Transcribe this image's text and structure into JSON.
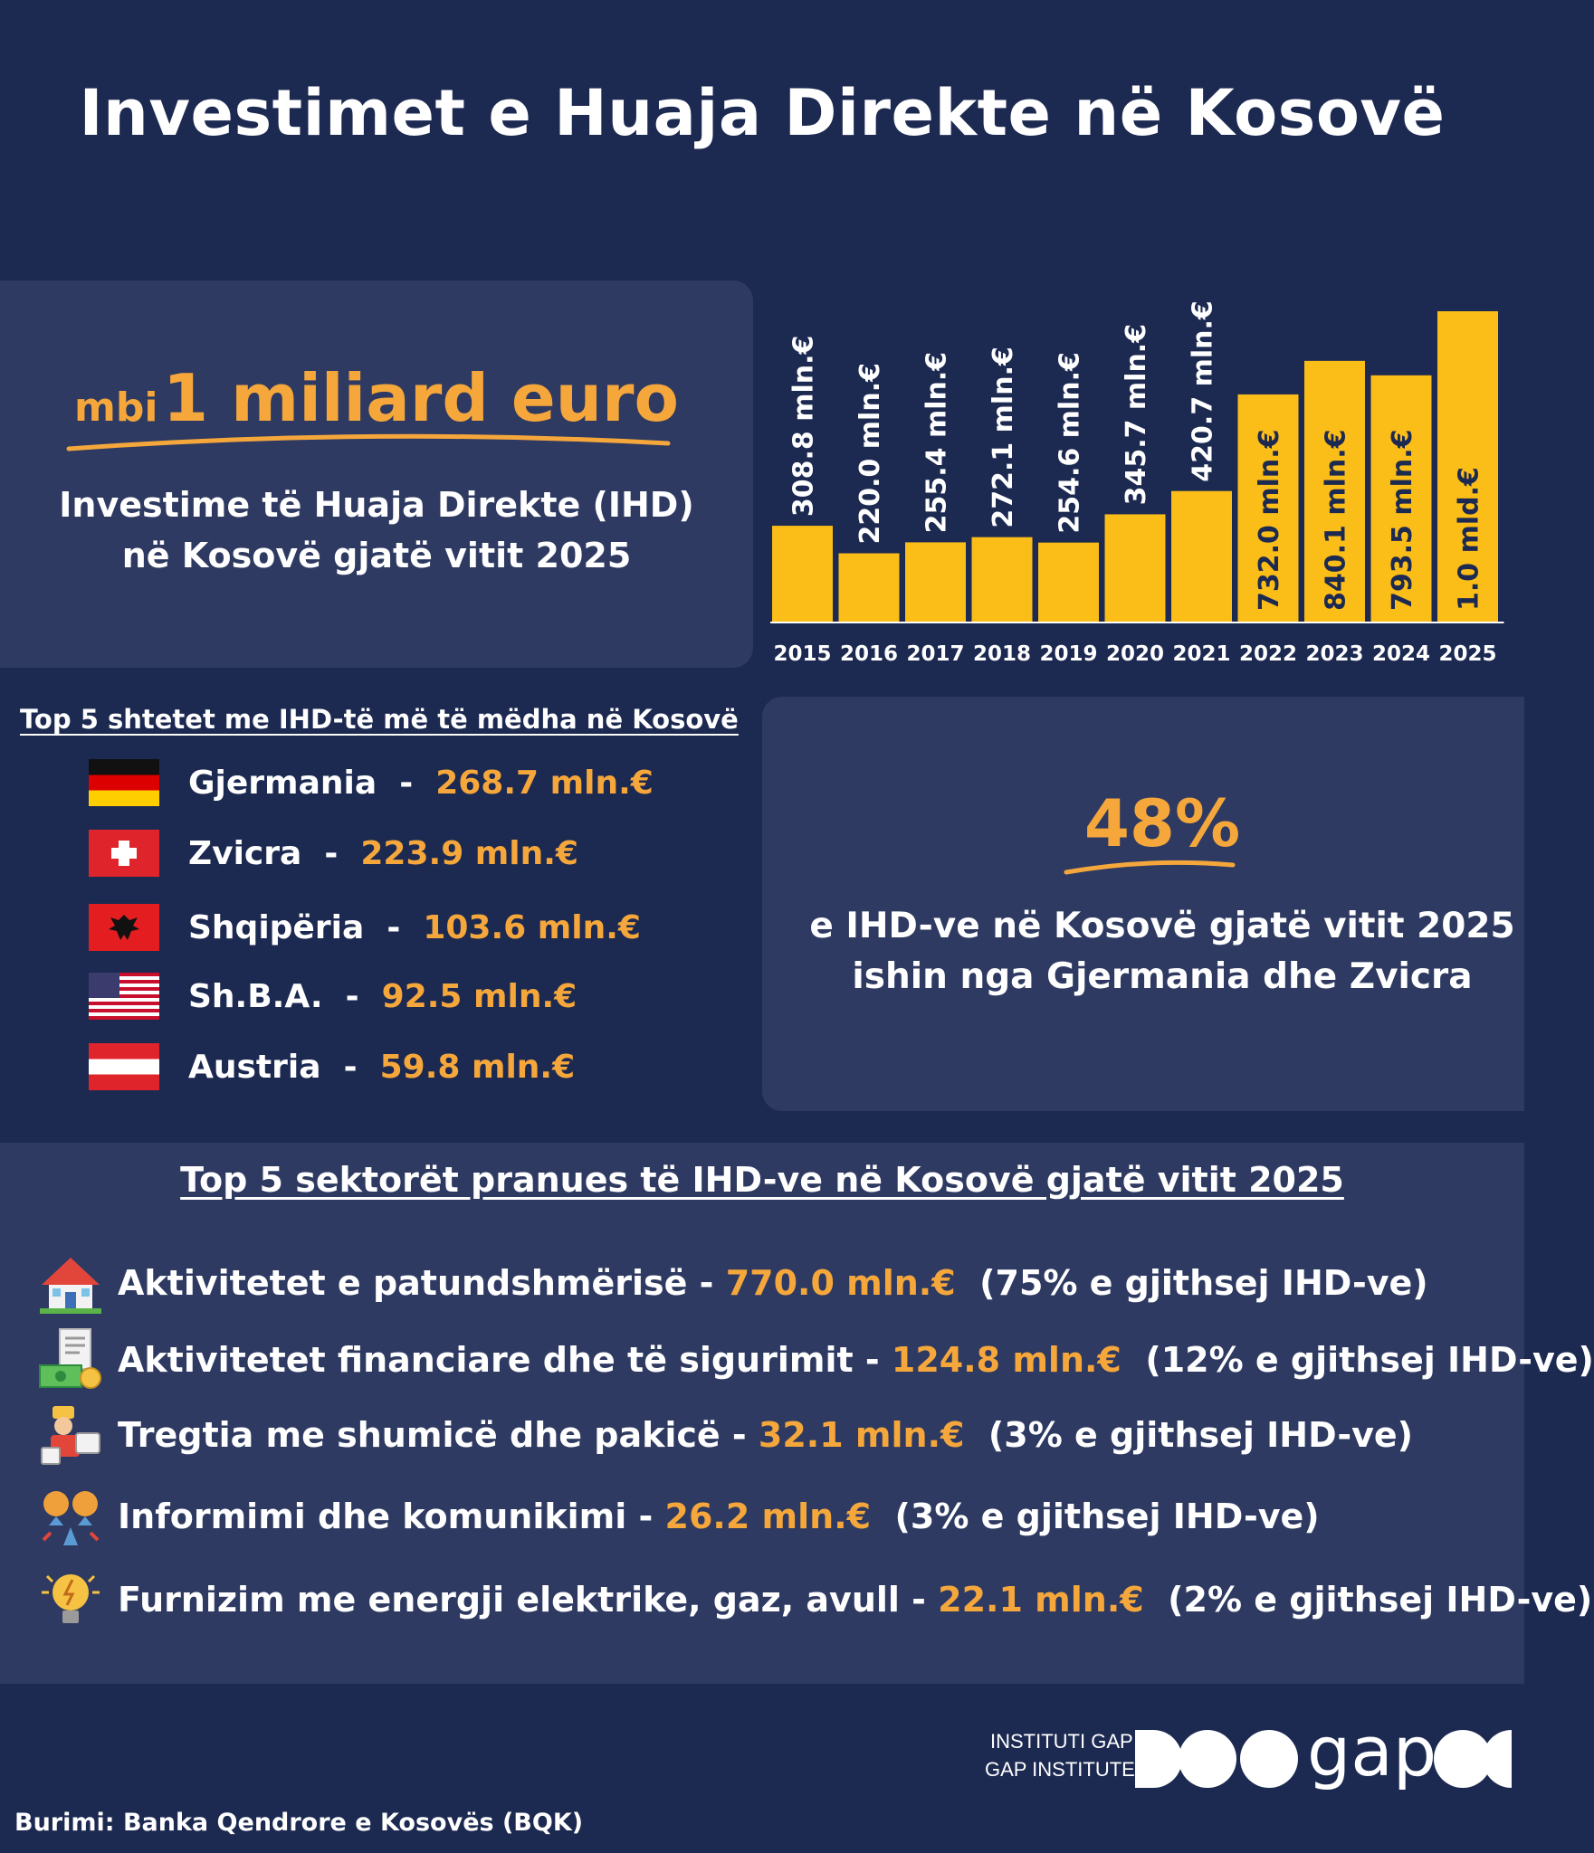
{
  "title": "Investimet e Huaja Direkte në Kosovë",
  "highlight": {
    "prefix": "mbi",
    "main": "1 miliard euro",
    "subtitle_line1": "Investime të Huaja Direkte (IHD)",
    "subtitle_line2": "në Kosovë gjatë vitit 2025"
  },
  "chart_data": {
    "type": "bar",
    "categories": [
      "2015",
      "2016",
      "2017",
      "2018",
      "2019",
      "2020",
      "2021",
      "2022",
      "2023",
      "2024",
      "2025"
    ],
    "values": [
      308.8,
      220.0,
      255.4,
      272.1,
      254.6,
      345.7,
      420.7,
      732.0,
      840.1,
      793.5,
      1000.0
    ],
    "data_labels": [
      "308.8 mln.€",
      "220.0 mln.€",
      "255.4 mln.€",
      "272.1 mln.€",
      "254.6 mln.€",
      "345.7 mln.€",
      "420.7 mln.€",
      "732.0 mln.€",
      "840.1 mln.€",
      "793.5 mln.€",
      "1.0 mld.€"
    ],
    "bar_color": "#fbbd18",
    "grid": false,
    "legend": "none"
  },
  "countries": {
    "heading": "Top 5 shtetet me IHD-të më të mëdha në Kosovë",
    "items": [
      {
        "name": "Gjermania",
        "sep": "  -  ",
        "value": "268.7 mln.€",
        "flag": "germany-flag-icon"
      },
      {
        "name": "Zvicra",
        "sep": "  -  ",
        "value": "223.9 mln.€",
        "flag": "switzerland-flag-icon"
      },
      {
        "name": "Shqipëria",
        "sep": "  -  ",
        "value": "103.6 mln.€",
        "flag": "albania-flag-icon"
      },
      {
        "name": "Sh.B.A.",
        "sep": "  -  ",
        "value": "92.5 mln.€",
        "flag": "usa-flag-icon"
      },
      {
        "name": "Austria",
        "sep": "  -  ",
        "value": "59.8 mln.€",
        "flag": "austria-flag-icon"
      }
    ]
  },
  "share": {
    "value": "48%",
    "line1": "e IHD-ve në Kosovë gjatë vitit 2025",
    "line2": "ishin nga Gjermania dhe Zvicra"
  },
  "sectors": {
    "heading": "Top 5 sektorët pranues të IHD-ve në Kosovë gjatë vitit 2025",
    "items": [
      {
        "label": "Aktivitetet e patundshmërisë - ",
        "value": "770.0 mln.€",
        "share": "  (75% e gjithsej IHD-ve)",
        "icon": "house-icon"
      },
      {
        "label": "Aktivitetet financiare dhe të sigurimit - ",
        "value": "124.8 mln.€",
        "share": "  (12% e gjithsej IHD-ve)",
        "icon": "money-document-icon"
      },
      {
        "label": "Tregtia me shumicë dhe pakicë - ",
        "value": "32.1 mln.€",
        "share": "  (3% e gjithsej IHD-ve)",
        "icon": "trade-icon"
      },
      {
        "label": "Informimi dhe komunikimi - ",
        "value": "26.2 mln.€",
        "share": "  (3% e gjithsej IHD-ve)",
        "icon": "communication-icon"
      },
      {
        "label": "Furnizim me energji elektrike, gaz, avull - ",
        "value": "22.1 mln.€",
        "share": "  (2% e gjithsej IHD-ve)",
        "icon": "lightbulb-icon"
      }
    ]
  },
  "brand": {
    "line1": "INSTITUTI GAP",
    "line2": "GAP INSTITUTE",
    "logo_text": "gap"
  },
  "source": "Burimi: Banka Qendrore e Kosovës (BQK)",
  "colors": {
    "background": "#1c2951",
    "panel": "#2e3a61",
    "accent": "#f5a73c",
    "bar": "#fbbd18"
  }
}
